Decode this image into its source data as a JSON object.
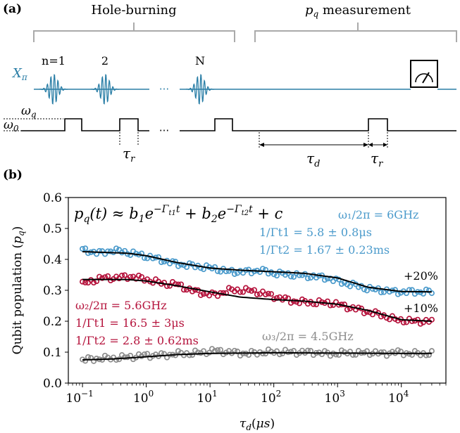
{
  "panel_a": {
    "label": "(a)",
    "hole_burning_label": "Hole-burning",
    "measurement_label_p": "p",
    "measurement_label_sub": "q",
    "measurement_label_rest": " measurement",
    "xpi_label": "X",
    "xpi_sub": "π",
    "pulse_labels": [
      "n=1",
      "2",
      "N"
    ],
    "ellipsis": "···",
    "omega_q": "ω",
    "omega_q_sub": "q",
    "omega_0": "ω",
    "omega_0_sub": "0",
    "tau_r": "τ",
    "tau_r_sub": "r",
    "tau_d": "τ",
    "tau_d_sub": "d",
    "colors": {
      "pulse": "#2a7ea6",
      "line": "#000000",
      "bracket": "#aaaaaa"
    }
  },
  "panel_b": {
    "label": "(b)",
    "equation": "p_q(t) ≈ b₁e^{−Γt1 t} + b₂e^{−Γt2 t} + c",
    "annotations": {
      "blue_freq": "ω₁/2π = 6GHz",
      "blue_t1": "1/Γt1 = 5.8 ± 0.8μs",
      "blue_t2": "1/Γt2 = 1.67 ± 0.23ms",
      "red_freq": "ω₂/2π = 5.6GHz",
      "red_t1": "1/Γt1 = 16.5 ± 3μs",
      "red_t2": "1/Γt2 = 2.8 ± 0.62ms",
      "gray_freq": "ω₃/2π = 4.5GHz",
      "offset_20": "+20%",
      "offset_10": "+10%"
    }
  },
  "chart_data": {
    "type": "scatter",
    "xlabel": "τd(μs)",
    "ylabel": "Qubit population (pq)",
    "xscale": "log",
    "xlim": [
      0.06,
      50000
    ],
    "ylim": [
      0.0,
      0.6
    ],
    "yticks": [
      "0.0",
      "0.1",
      "0.2",
      "0.3",
      "0.4",
      "0.5",
      "0.6"
    ],
    "xticks": [
      "10⁻¹",
      "10⁰",
      "10¹",
      "10²",
      "10³",
      "10⁴"
    ],
    "grid": false,
    "series": [
      {
        "color": "#4a9acb",
        "points": [
          [
            0.1,
            0.43
          ],
          [
            0.2,
            0.42
          ],
          [
            0.3,
            0.43
          ],
          [
            0.6,
            0.42
          ],
          [
            1,
            0.41
          ],
          [
            2,
            0.395
          ],
          [
            3,
            0.385
          ],
          [
            5,
            0.38
          ],
          [
            8,
            0.375
          ],
          [
            12,
            0.37
          ],
          [
            20,
            0.36
          ],
          [
            40,
            0.36
          ],
          [
            60,
            0.365
          ],
          [
            100,
            0.355
          ],
          [
            200,
            0.35
          ],
          [
            400,
            0.345
          ],
          [
            700,
            0.34
          ],
          [
            1000,
            0.33
          ],
          [
            1500,
            0.32
          ],
          [
            2000,
            0.315
          ],
          [
            3000,
            0.305
          ],
          [
            5000,
            0.3
          ],
          [
            8000,
            0.295
          ],
          [
            15000,
            0.295
          ],
          [
            30000,
            0.295
          ]
        ],
        "fit": [
          [
            0.1,
            0.425
          ],
          [
            0.5,
            0.42
          ],
          [
            1,
            0.412
          ],
          [
            3,
            0.39
          ],
          [
            10,
            0.372
          ],
          [
            30,
            0.365
          ],
          [
            100,
            0.36
          ],
          [
            300,
            0.355
          ],
          [
            1000,
            0.34
          ],
          [
            3000,
            0.31
          ],
          [
            10000,
            0.296
          ],
          [
            30000,
            0.295
          ]
        ]
      },
      {
        "color": "#b5133c",
        "points": [
          [
            0.1,
            0.32
          ],
          [
            0.2,
            0.34
          ],
          [
            0.3,
            0.34
          ],
          [
            0.6,
            0.345
          ],
          [
            1,
            0.335
          ],
          [
            2,
            0.32
          ],
          [
            3,
            0.32
          ],
          [
            5,
            0.3
          ],
          [
            8,
            0.29
          ],
          [
            12,
            0.285
          ],
          [
            20,
            0.3
          ],
          [
            40,
            0.3
          ],
          [
            70,
            0.29
          ],
          [
            100,
            0.28
          ],
          [
            200,
            0.265
          ],
          [
            400,
            0.26
          ],
          [
            700,
            0.26
          ],
          [
            1000,
            0.255
          ],
          [
            1500,
            0.245
          ],
          [
            2000,
            0.24
          ],
          [
            3000,
            0.23
          ],
          [
            5000,
            0.22
          ],
          [
            8000,
            0.205
          ],
          [
            15000,
            0.2
          ],
          [
            30000,
            0.2
          ]
        ],
        "fit": [
          [
            0.1,
            0.335
          ],
          [
            0.5,
            0.335
          ],
          [
            1,
            0.33
          ],
          [
            3,
            0.315
          ],
          [
            10,
            0.295
          ],
          [
            30,
            0.278
          ],
          [
            100,
            0.27
          ],
          [
            300,
            0.265
          ],
          [
            1000,
            0.255
          ],
          [
            3000,
            0.235
          ],
          [
            10000,
            0.205
          ],
          [
            30000,
            0.2
          ]
        ]
      },
      {
        "color": "#8c8c8c",
        "points": [
          [
            0.1,
            0.075
          ],
          [
            0.2,
            0.08
          ],
          [
            0.3,
            0.08
          ],
          [
            0.6,
            0.085
          ],
          [
            1,
            0.09
          ],
          [
            2,
            0.09
          ],
          [
            3,
            0.095
          ],
          [
            5,
            0.095
          ],
          [
            8,
            0.1
          ],
          [
            12,
            0.105
          ],
          [
            20,
            0.1
          ],
          [
            40,
            0.095
          ],
          [
            70,
            0.1
          ],
          [
            100,
            0.1
          ],
          [
            200,
            0.1
          ],
          [
            400,
            0.1
          ],
          [
            700,
            0.095
          ],
          [
            1000,
            0.095
          ],
          [
            1500,
            0.1
          ],
          [
            2000,
            0.095
          ],
          [
            3000,
            0.1
          ],
          [
            5000,
            0.095
          ],
          [
            8000,
            0.1
          ],
          [
            15000,
            0.095
          ],
          [
            30000,
            0.095
          ]
        ],
        "fit": [
          [
            0.1,
            0.075
          ],
          [
            0.3,
            0.078
          ],
          [
            1,
            0.085
          ],
          [
            3,
            0.092
          ],
          [
            10,
            0.096
          ],
          [
            30,
            0.097
          ],
          [
            100,
            0.098
          ],
          [
            1000,
            0.097
          ],
          [
            10000,
            0.096
          ],
          [
            30000,
            0.096
          ]
        ]
      }
    ]
  }
}
